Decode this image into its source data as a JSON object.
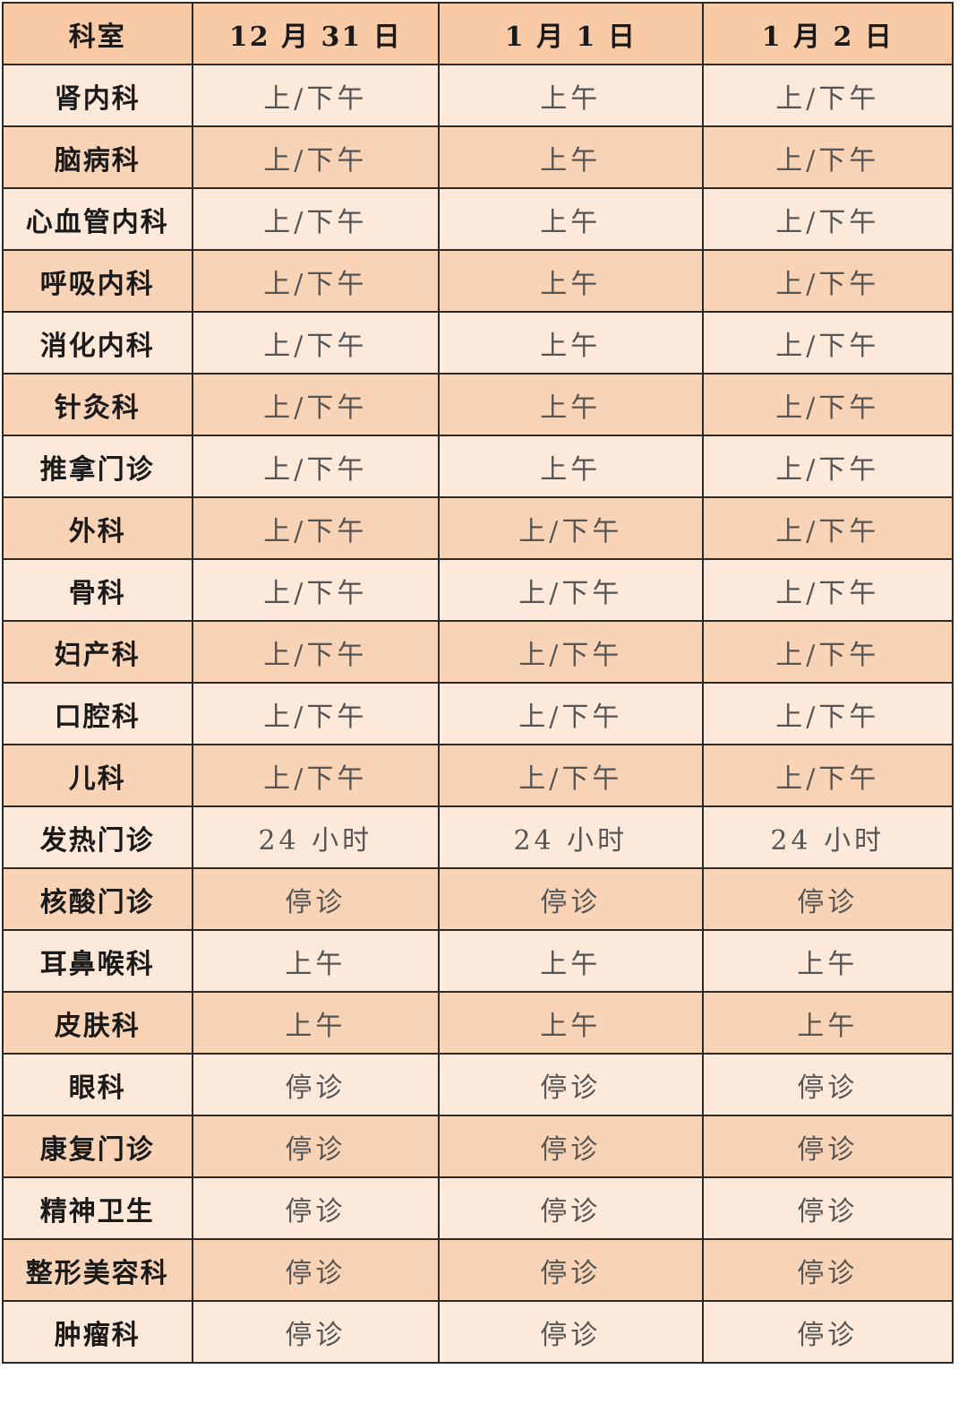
{
  "colors": {
    "header": "#f8cba6",
    "row_light": "#fde9da",
    "row_dark": "#f9d3b5"
  },
  "headers": [
    "科室",
    "12 月 31 日",
    "1 月 1 日",
    "1 月 2 日"
  ],
  "rows": [
    [
      "肾内科",
      "上/下午",
      "上午",
      "上/下午"
    ],
    [
      "脑病科",
      "上/下午",
      "上午",
      "上/下午"
    ],
    [
      "心血管内科",
      "上/下午",
      "上午",
      "上/下午"
    ],
    [
      "呼吸内科",
      "上/下午",
      "上午",
      "上/下午"
    ],
    [
      "消化内科",
      "上/下午",
      "上午",
      "上/下午"
    ],
    [
      "针灸科",
      "上/下午",
      "上午",
      "上/下午"
    ],
    [
      "推拿门诊",
      "上/下午",
      "上午",
      "上/下午"
    ],
    [
      "外科",
      "上/下午",
      "上/下午",
      "上/下午"
    ],
    [
      "骨科",
      "上/下午",
      "上/下午",
      "上/下午"
    ],
    [
      "妇产科",
      "上/下午",
      "上/下午",
      "上/下午"
    ],
    [
      "口腔科",
      "上/下午",
      "上/下午",
      "上/下午"
    ],
    [
      "儿科",
      "上/下午",
      "上/下午",
      "上/下午"
    ],
    [
      "发热门诊",
      "24 小时",
      "24 小时",
      "24 小时"
    ],
    [
      "核酸门诊",
      "停诊",
      "停诊",
      "停诊"
    ],
    [
      "耳鼻喉科",
      "上午",
      "上午",
      "上午"
    ],
    [
      "皮肤科",
      "上午",
      "上午",
      "上午"
    ],
    [
      "眼科",
      "停诊",
      "停诊",
      "停诊"
    ],
    [
      "康复门诊",
      "停诊",
      "停诊",
      "停诊"
    ],
    [
      "精神卫生",
      "停诊",
      "停诊",
      "停诊"
    ],
    [
      "整形美容科",
      "停诊",
      "停诊",
      "停诊"
    ],
    [
      "肿瘤科",
      "停诊",
      "停诊",
      "停诊"
    ]
  ]
}
